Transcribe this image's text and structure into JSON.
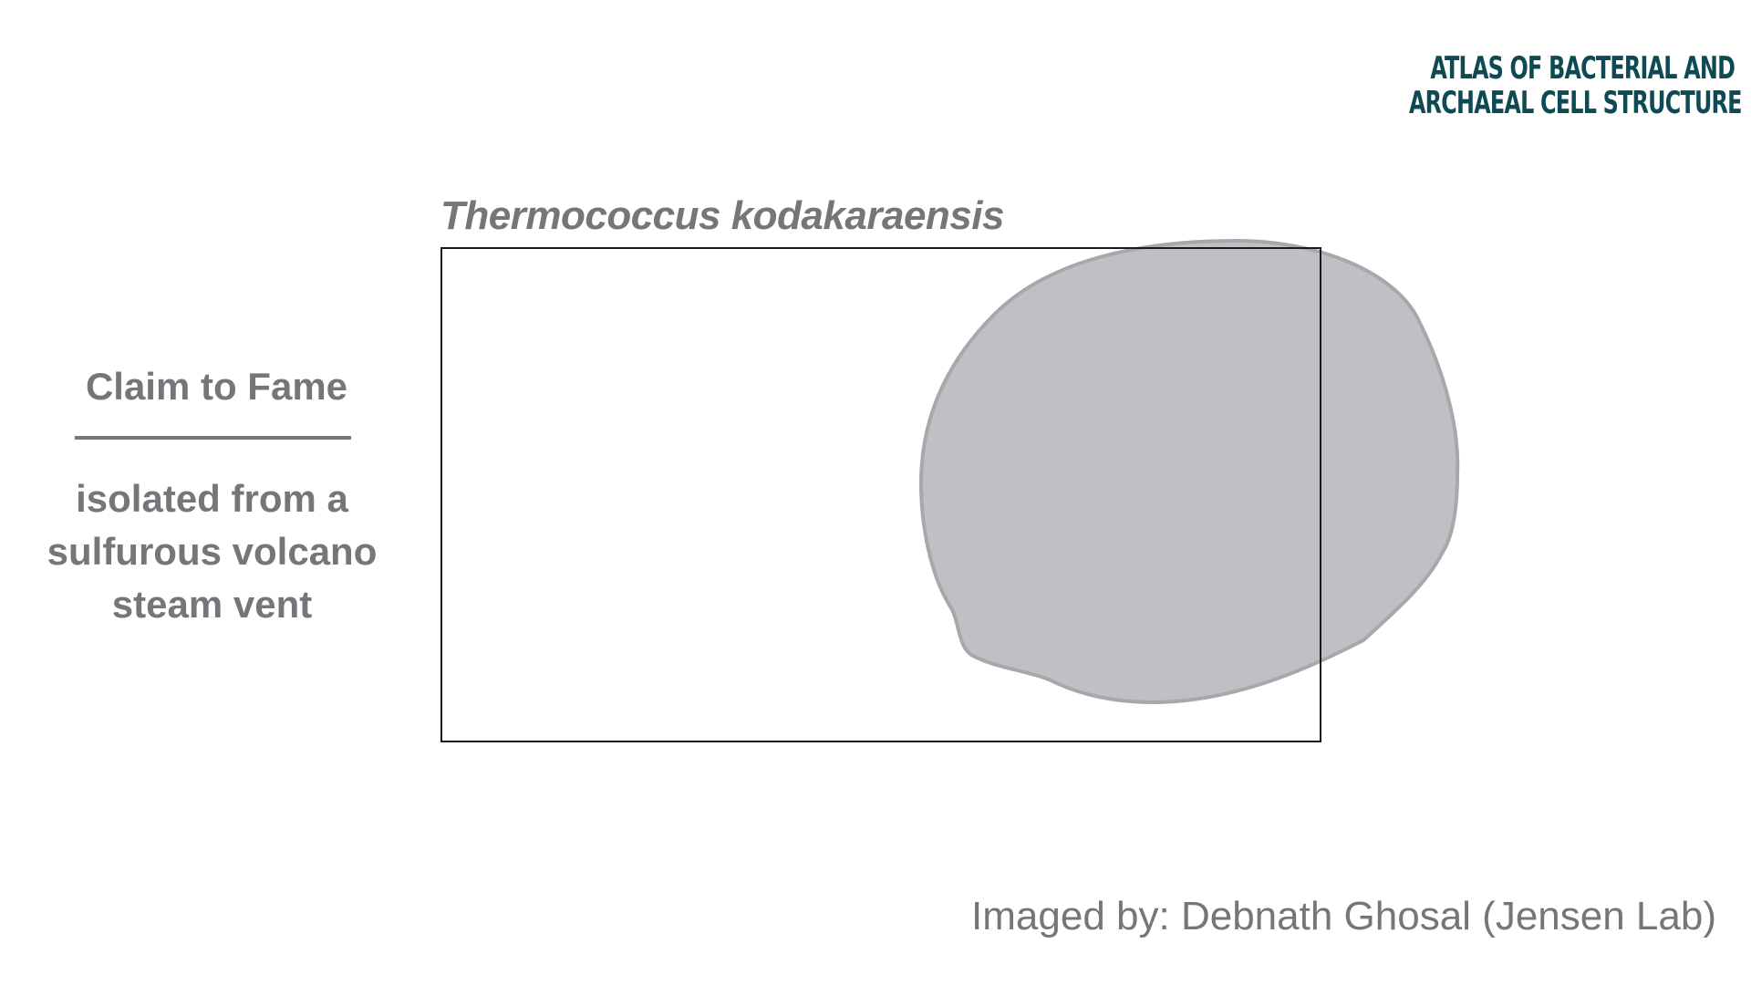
{
  "logo": {
    "line1": "ATLAS OF BACTERIAL AND",
    "line2": "ARCHAEAL CELL STRUCTURE",
    "color": "#0e4a54"
  },
  "figure": {
    "species": "Thermococcus kodakaraensis",
    "cell_color": "#bfc0c4",
    "cell_outline_color": "#a7a8ac"
  },
  "claim": {
    "heading": "Claim to Fame",
    "lines": [
      "isolated from a",
      "sulfurous volcano",
      "steam vent"
    ]
  },
  "credit": "Imaged by: Debnath Ghosal (Jensen Lab)",
  "colors": {
    "text_gray": "#76767a",
    "frame": "#1a1a1a"
  }
}
